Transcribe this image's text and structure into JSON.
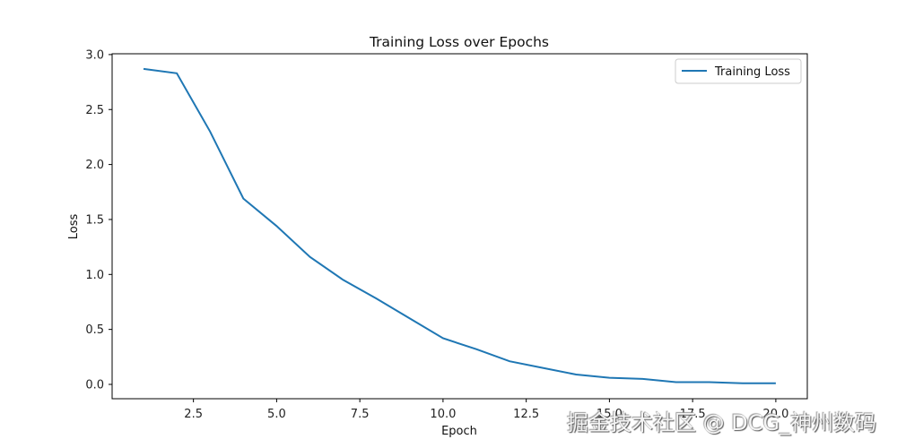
{
  "chart_data": {
    "type": "line",
    "title": "Training Loss over Epochs",
    "xlabel": "Epoch",
    "ylabel": "Loss",
    "xlim": [
      0.05,
      20.95
    ],
    "ylim": [
      -0.13,
      3.0
    ],
    "xticks": [
      "2.5",
      "5.0",
      "7.5",
      "10.0",
      "12.5",
      "15.0",
      "17.5",
      "20.0"
    ],
    "yticks": [
      "0.0",
      "0.5",
      "1.0",
      "1.5",
      "2.0",
      "2.5",
      "3.0"
    ],
    "grid": false,
    "legend_position": "upper right",
    "x": [
      1,
      2,
      3,
      4,
      5,
      6,
      7,
      8,
      9,
      10,
      11,
      12,
      13,
      14,
      15,
      16,
      17,
      18,
      19,
      20
    ],
    "series": [
      {
        "name": "Training Loss",
        "color": "#1f77b4",
        "values": [
          2.87,
          2.83,
          2.3,
          1.69,
          1.44,
          1.16,
          0.95,
          0.78,
          0.6,
          0.42,
          0.32,
          0.21,
          0.15,
          0.09,
          0.06,
          0.05,
          0.02,
          0.02,
          0.01,
          0.01
        ]
      }
    ]
  },
  "watermark": "掘金技术社区 @ DCG_神州数码"
}
